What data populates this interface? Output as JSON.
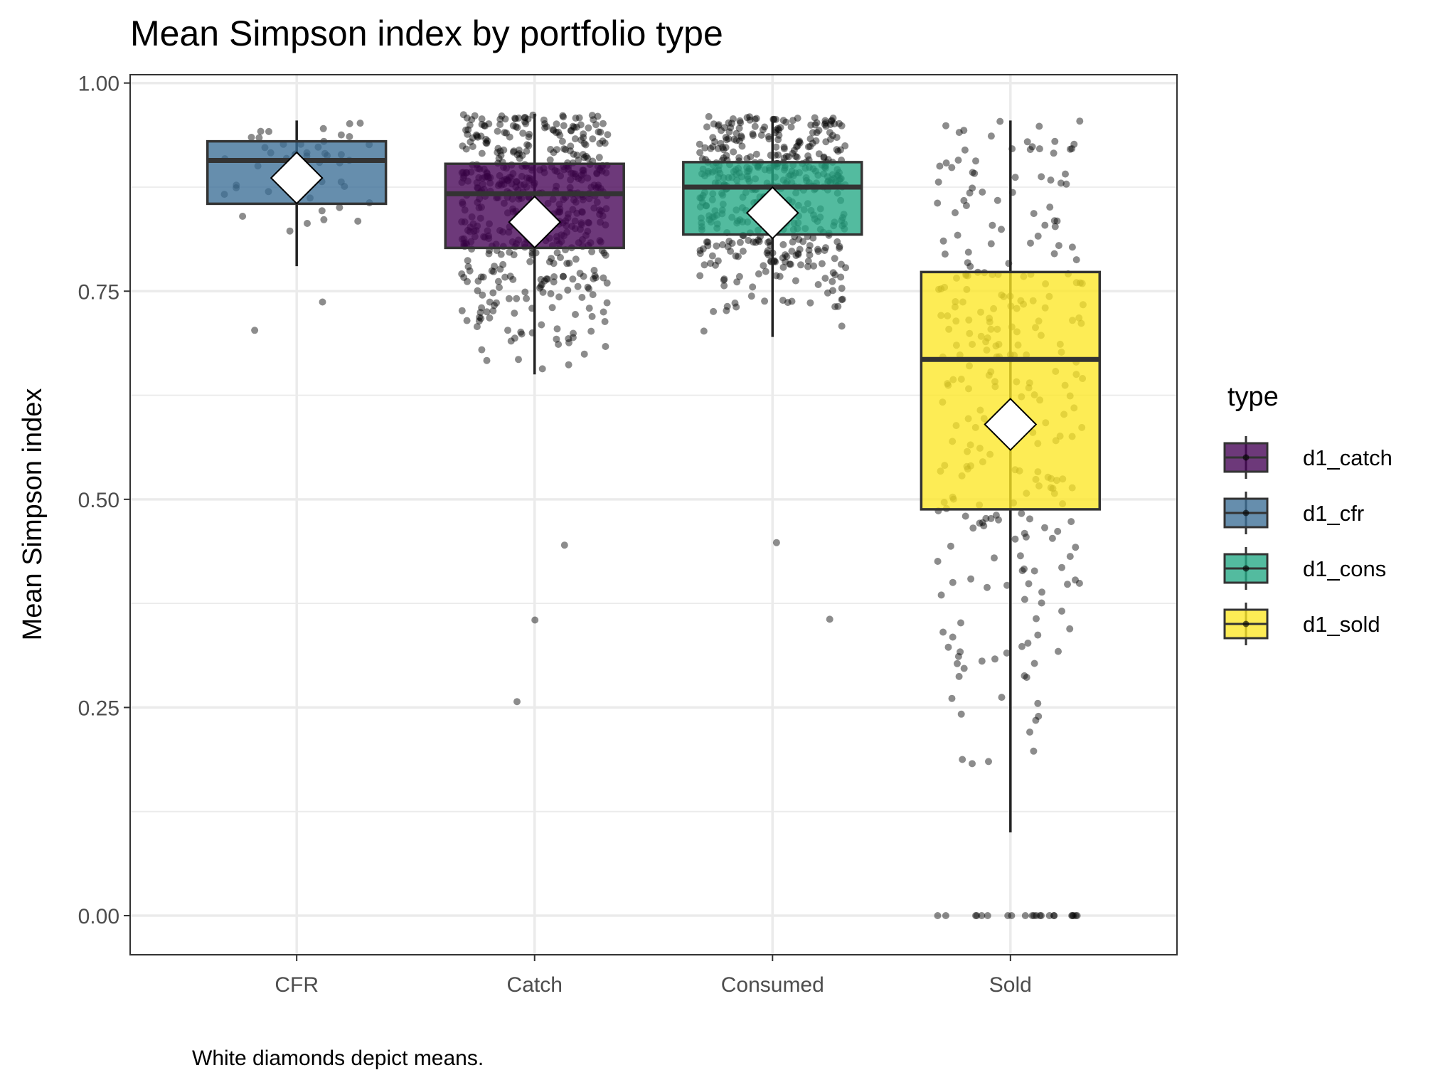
{
  "chart_data": {
    "type": "boxplot",
    "title": "Mean Simpson index by portfolio type",
    "ylabel": "Mean Simpson index",
    "xlabel": "",
    "caption": "White diamonds depict means.",
    "ylim": [
      -0.047,
      1.01
    ],
    "yticks": [
      0.0,
      0.25,
      0.5,
      0.75,
      1.0
    ],
    "ytick_labels": [
      "0.00",
      "0.25",
      "0.50",
      "0.75",
      "1.00"
    ],
    "grid": true,
    "legend": {
      "title": "type",
      "position": "right"
    },
    "categories": [
      "CFR",
      "Catch",
      "Consumed",
      "Sold"
    ],
    "series": [
      {
        "name": "d1_cfr",
        "category": "CFR",
        "color": "#3b6e96",
        "q1": 0.855,
        "median": 0.907,
        "q3": 0.93,
        "whisker_low": 0.78,
        "whisker_high": 0.955,
        "mean": 0.886,
        "n_points": 45
      },
      {
        "name": "d1_catch",
        "category": "Catch",
        "color": "#440154",
        "q1": 0.802,
        "median": 0.867,
        "q3": 0.903,
        "whisker_low": 0.65,
        "whisker_high": 0.963,
        "mean": 0.833,
        "n_points": 520
      },
      {
        "name": "d1_cons",
        "category": "Consumed",
        "color": "#22a884",
        "q1": 0.818,
        "median": 0.875,
        "q3": 0.905,
        "whisker_low": 0.695,
        "whisker_high": 0.96,
        "mean": 0.844,
        "n_points": 480
      },
      {
        "name": "d1_sold",
        "category": "Sold",
        "color": "#fde725",
        "q1": 0.488,
        "median": 0.668,
        "q3": 0.773,
        "whisker_low": 0.1,
        "whisker_high": 0.955,
        "mean": 0.59,
        "n_points": 280
      }
    ],
    "legend_order": [
      "d1_catch",
      "d1_cfr",
      "d1_cons",
      "d1_sold"
    ]
  }
}
